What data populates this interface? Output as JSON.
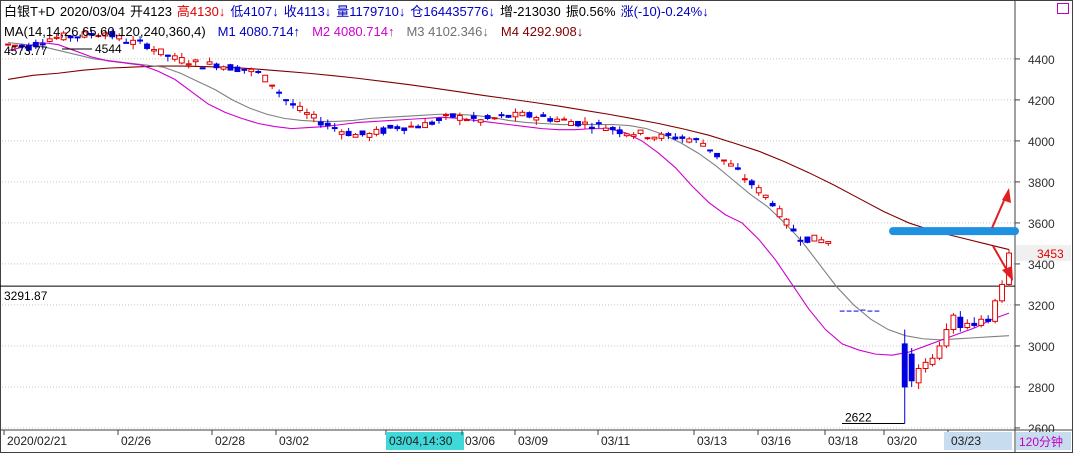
{
  "header": {
    "line1": [
      {
        "text": "白银T+D",
        "color": "#000000"
      },
      {
        "text": "2020/03/04",
        "color": "#000000"
      },
      {
        "text": "开4123",
        "color": "#000000"
      },
      {
        "text": "高4130↓",
        "color": "#e00000"
      },
      {
        "text": "低4107↓",
        "color": "#0000c0"
      },
      {
        "text": "收4113↓",
        "color": "#0000c0"
      },
      {
        "text": "量1179710↓",
        "color": "#0000c0"
      },
      {
        "text": "仓164435776↓",
        "color": "#0000c0"
      },
      {
        "text": "增-213030",
        "color": "#000000"
      },
      {
        "text": "振0.56%",
        "color": "#000000"
      },
      {
        "text": "涨(-10)-0.24%↓",
        "color": "#0000c0"
      }
    ],
    "line2": [
      {
        "text": "MA(14,14,26,65,60,120,240,360,4)",
        "color": "#000000"
      },
      {
        "text": "M1 4080.714↑",
        "color": "#0000c0"
      },
      {
        "text": "M2 4080.714↑",
        "color": "#d000d0"
      },
      {
        "text": "M3 4102.346↓",
        "color": "#707070"
      },
      {
        "text": "M4 4292.908↓",
        "color": "#800000"
      }
    ]
  },
  "chart_data": {
    "type": "candlestick",
    "instrument": "白银T+D",
    "period": "120分钟",
    "yaxis": {
      "ticks": [
        2600,
        2800,
        3000,
        3200,
        3400,
        3600,
        3800,
        4000,
        4200,
        4400
      ],
      "range": [
        2590,
        4580
      ],
      "side": "right"
    },
    "xaxis": {
      "labels": [
        "2020/02/21",
        "02/26",
        "02/28",
        "03/02",
        "03/04,14:30",
        "03/06",
        "03/09",
        "03/11",
        "03/13",
        "03/16",
        "03/18",
        "03/20",
        "03/23"
      ],
      "highlighted": "03/04,14:30",
      "bars_total": 145
    },
    "annotations": {
      "high_label": "4573.77",
      "peak_label": "4544",
      "low_label": "2622",
      "right_price_label": "3453",
      "left_price_label": "3291.87",
      "horizontal_line_price": 3291.87
    },
    "markup": {
      "blue_band_price": 3560,
      "arrows": [
        "up-right",
        "down-right"
      ]
    },
    "period_label": "120分钟",
    "series": [
      {
        "name": "M1",
        "color": "#0000c0",
        "values": []
      },
      {
        "name": "M2",
        "color": "#d000d0",
        "values": [
          4440,
          4460,
          4480,
          4470,
          4440,
          4410,
          4390,
          4380,
          4370,
          4340,
          4300,
          4240,
          4180,
          4140,
          4110,
          4085,
          4070,
          4060,
          4065,
          4070,
          4080,
          4090,
          4095,
          4100,
          4105,
          4110,
          4115,
          4110,
          4100,
          4090,
          4080,
          4070,
          4060,
          4055,
          4055,
          4060,
          4060,
          4040,
          4000,
          3940,
          3870,
          3780,
          3700,
          3640,
          3600,
          3520,
          3420,
          3300,
          3180,
          3080,
          3010,
          2980,
          2960,
          2955,
          2970,
          3000,
          3030,
          3060,
          3090,
          3130,
          3160
        ]
      },
      {
        "name": "M3",
        "color": "#808080",
        "values": [
          4480,
          4470,
          4460,
          4440,
          4420,
          4400,
          4390,
          4380,
          4370,
          4360,
          4330,
          4290,
          4250,
          4200,
          4160,
          4130,
          4110,
          4100,
          4095,
          4095,
          4100,
          4110,
          4115,
          4120,
          4125,
          4130,
          4130,
          4125,
          4115,
          4100,
          4090,
          4085,
          4080,
          4080,
          4080,
          4080,
          4075,
          4060,
          4030,
          3990,
          3940,
          3880,
          3810,
          3740,
          3680,
          3600,
          3510,
          3400,
          3290,
          3200,
          3130,
          3080,
          3050,
          3035,
          3030,
          3035,
          3040,
          3045,
          3050
        ]
      },
      {
        "name": "M4",
        "color": "#800000",
        "values": [
          4300,
          4320,
          4330,
          4345,
          4355,
          4360,
          4365,
          4365,
          4362,
          4358,
          4350,
          4340,
          4330,
          4318,
          4305,
          4290,
          4275,
          4258,
          4240,
          4222,
          4205,
          4188,
          4170,
          4150,
          4130,
          4108,
          4085,
          4058,
          4028,
          3990,
          3950,
          3900,
          3845,
          3785,
          3720,
          3655,
          3600,
          3560,
          3530,
          3500,
          3470
        ]
      }
    ]
  }
}
